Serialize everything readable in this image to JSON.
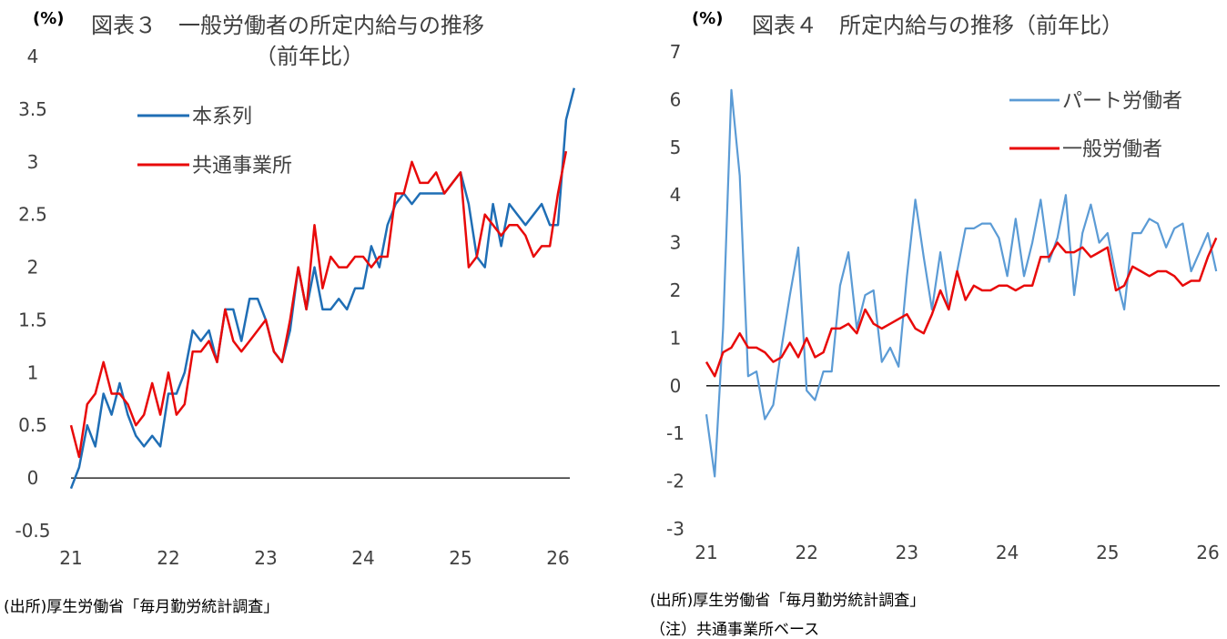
{
  "left": {
    "unit": "(%)",
    "title_line1": "図表３　一般労働者の所定内給与の推移",
    "title_line2": "（前年比）",
    "source": "(出所)厚生労働省「毎月勤労統計調査」"
  },
  "right": {
    "unit": "(%)",
    "title": "図表４　所定内給与の推移（前年比）",
    "source": "(出所)厚生労働省「毎月勤労統計調査」",
    "note": "（注）共通事業所ベース"
  },
  "chart_data": [
    {
      "type": "line",
      "x_ticks": [
        "21",
        "22",
        "23",
        "24",
        "25",
        "26"
      ],
      "y_ticks": [
        "4",
        "3.5",
        "3",
        "2.5",
        "2",
        "1.5",
        "1",
        "0.5",
        "0",
        "-0.5"
      ],
      "ylim": [
        -0.5,
        4
      ],
      "x_start": 21,
      "x_step": 0.08333,
      "series": [
        {
          "name": "本系列",
          "color": "#1F6EB5",
          "values": [
            -0.1,
            0.1,
            0.5,
            0.3,
            0.8,
            0.6,
            0.9,
            0.6,
            0.4,
            0.3,
            0.4,
            0.3,
            0.8,
            0.8,
            1.0,
            1.4,
            1.3,
            1.4,
            1.1,
            1.6,
            1.6,
            1.3,
            1.7,
            1.7,
            1.5,
            1.2,
            1.1,
            1.4,
            2.0,
            1.6,
            2.0,
            1.6,
            1.6,
            1.7,
            1.6,
            1.8,
            1.8,
            2.2,
            2.0,
            2.4,
            2.6,
            2.7,
            2.6,
            2.7,
            2.7,
            2.7,
            2.7,
            2.8,
            2.9,
            2.6,
            2.1,
            2.0,
            2.6,
            2.2,
            2.6,
            2.5,
            2.4,
            2.5,
            2.6,
            2.4,
            2.4,
            3.4,
            3.7
          ]
        },
        {
          "name": "共通事業所",
          "color": "#E80A0A",
          "values": [
            0.5,
            0.2,
            0.7,
            0.8,
            1.1,
            0.8,
            0.8,
            0.7,
            0.5,
            0.6,
            0.9,
            0.6,
            1.0,
            0.6,
            0.7,
            1.2,
            1.2,
            1.3,
            1.1,
            1.6,
            1.3,
            1.2,
            1.3,
            1.4,
            1.5,
            1.2,
            1.1,
            1.5,
            2.0,
            1.6,
            2.4,
            1.8,
            2.1,
            2.0,
            2.0,
            2.1,
            2.1,
            2.0,
            2.1,
            2.1,
            2.7,
            2.7,
            3.0,
            2.8,
            2.8,
            2.9,
            2.7,
            2.8,
            2.9,
            2.0,
            2.1,
            2.5,
            2.4,
            2.3,
            2.4,
            2.4,
            2.3,
            2.1,
            2.2,
            2.2,
            2.7,
            3.1
          ]
        }
      ]
    },
    {
      "type": "line",
      "x_ticks": [
        "21",
        "22",
        "23",
        "24",
        "25",
        "26"
      ],
      "y_ticks": [
        "7",
        "6",
        "5",
        "4",
        "3",
        "2",
        "1",
        "0",
        "-1",
        "-2",
        "-3"
      ],
      "ylim": [
        -3,
        7
      ],
      "x_start": 21,
      "x_step": 0.08333,
      "series": [
        {
          "name": "パート労働者",
          "color": "#5B9BD5",
          "values": [
            -0.6,
            -1.9,
            1.2,
            6.2,
            4.4,
            0.2,
            0.3,
            -0.7,
            -0.4,
            0.8,
            1.9,
            2.9,
            -0.1,
            -0.3,
            0.3,
            0.3,
            2.1,
            2.8,
            1.2,
            1.9,
            2.0,
            0.5,
            0.8,
            0.4,
            2.3,
            3.9,
            2.7,
            1.6,
            2.8,
            1.6,
            2.4,
            3.3,
            3.3,
            3.4,
            3.4,
            3.1,
            2.3,
            3.5,
            2.3,
            3.0,
            3.9,
            2.6,
            3.1,
            4.0,
            1.9,
            3.2,
            3.8,
            3.0,
            3.2,
            2.3,
            1.6,
            3.2,
            3.2,
            3.5,
            3.4,
            2.9,
            3.3,
            3.4,
            2.4,
            2.8,
            3.2,
            2.4
          ]
        },
        {
          "name": "一般労働者",
          "color": "#E80A0A",
          "values": [
            0.5,
            0.2,
            0.7,
            0.8,
            1.1,
            0.8,
            0.8,
            0.7,
            0.5,
            0.6,
            0.9,
            0.6,
            1.0,
            0.6,
            0.7,
            1.2,
            1.2,
            1.3,
            1.1,
            1.6,
            1.3,
            1.2,
            1.3,
            1.4,
            1.5,
            1.2,
            1.1,
            1.5,
            2.0,
            1.6,
            2.4,
            1.8,
            2.1,
            2.0,
            2.0,
            2.1,
            2.1,
            2.0,
            2.1,
            2.1,
            2.7,
            2.7,
            3.0,
            2.8,
            2.8,
            2.9,
            2.7,
            2.8,
            2.9,
            2.0,
            2.1,
            2.5,
            2.4,
            2.3,
            2.4,
            2.4,
            2.3,
            2.1,
            2.2,
            2.2,
            2.7,
            3.1
          ]
        }
      ]
    }
  ]
}
